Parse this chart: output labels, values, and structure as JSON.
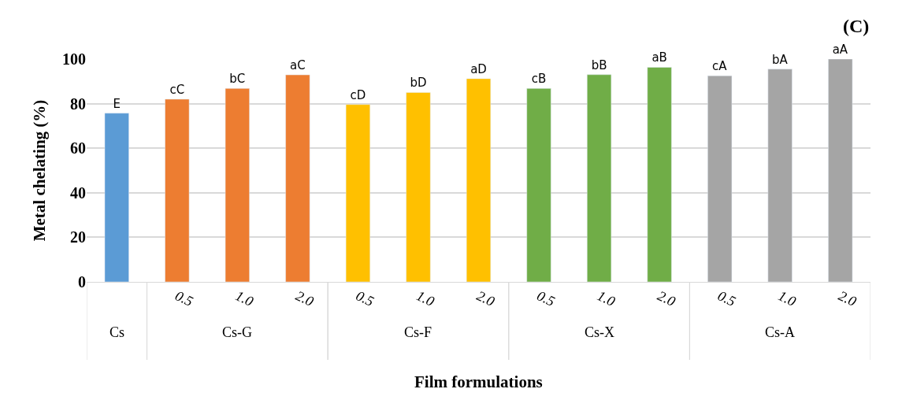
{
  "chart_data": {
    "type": "bar",
    "title": "(C)",
    "xlabel": "Film formulations",
    "ylabel": "Metal chelating (%)",
    "categories": [
      null,
      "0.5",
      "1.0",
      "2.0",
      "0.5",
      "1.0",
      "2.0",
      "0.5",
      "1.0",
      "2.0",
      "0.5",
      "1.0",
      "2.0"
    ],
    "annotations": [
      "Cs",
      "Cs-G",
      "Cs-F",
      "Cs-X",
      "Cs-A"
    ],
    "values": [
      75.7,
      82,
      86.8,
      92.9,
      79.6,
      85,
      91.2,
      86.8,
      93,
      96.3,
      92.5,
      95.5,
      100
    ],
    "colors": [
      "#5b9bd5",
      "#ed7d31",
      "#ed7d31",
      "#ed7d31",
      "#ffc000",
      "#ffc000",
      "#ffc000",
      "#70ad47",
      "#70ad47",
      "#70ad47",
      "#a5a5a5",
      "#a5a5a5",
      "#a5a5a5"
    ],
    "value_labels": [
      "E",
      "cC",
      "bC",
      "aC",
      "cD",
      "bD",
      "aD",
      "cB",
      "bB",
      "aB",
      "cA",
      "bA",
      "aA"
    ],
    "ylim": [
      0,
      100
    ],
    "yticks": [
      0,
      20,
      40,
      60,
      80,
      100
    ],
    "grid": "y",
    "legend": false
  }
}
